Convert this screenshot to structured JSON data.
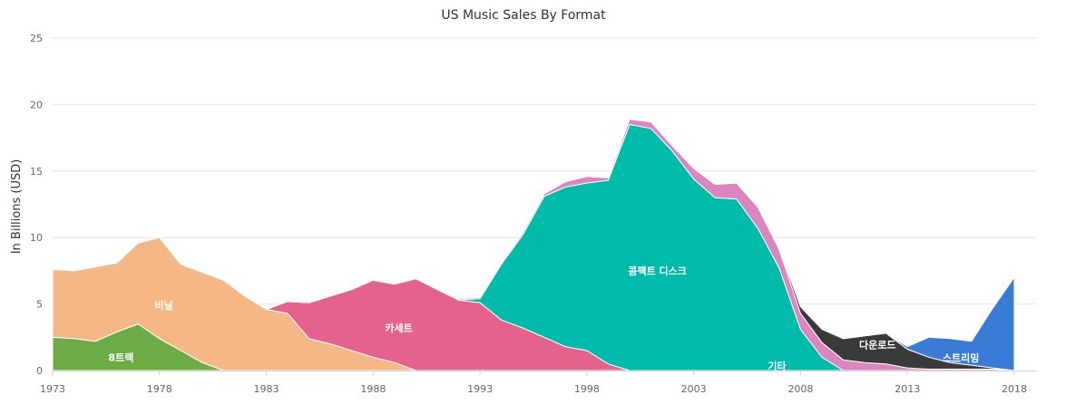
{
  "chart_data": {
    "type": "area",
    "title": "US Music Sales By Format",
    "ylabel": "In Billions (USD)",
    "xlabel": "",
    "xlim": [
      1973,
      2018
    ],
    "ylim": [
      0,
      25
    ],
    "x_ticks": [
      "1973",
      "1978",
      "1983",
      "1988",
      "1993",
      "1998",
      "2003",
      "2008",
      "2013",
      "2018"
    ],
    "y_ticks": [
      "0",
      "5",
      "10",
      "15",
      "20",
      "25"
    ],
    "grid": true,
    "x": [
      1973,
      1974,
      1975,
      1976,
      1977,
      1978,
      1979,
      1980,
      1981,
      1982,
      1983,
      1984,
      1985,
      1986,
      1987,
      1988,
      1989,
      1990,
      1991,
      1992,
      1993,
      1994,
      1995,
      1996,
      1997,
      1998,
      1999,
      2000,
      2001,
      2002,
      2003,
      2004,
      2005,
      2006,
      2007,
      2008,
      2009,
      2010,
      2011,
      2012,
      2013,
      2014,
      2015,
      2016,
      2017,
      2018
    ],
    "series": [
      {
        "name": "8트랙",
        "color": "#6DAB45",
        "values": [
          2.5,
          2.4,
          2.2,
          2.9,
          3.5,
          2.4,
          1.5,
          0.6,
          0,
          0,
          0,
          0,
          0,
          0,
          0,
          0,
          0,
          0,
          0,
          0,
          0,
          0,
          0,
          0,
          0,
          0,
          0,
          0,
          0,
          0,
          0,
          0,
          0,
          0,
          0,
          0,
          0,
          0,
          0,
          0,
          0,
          0,
          0,
          0,
          0,
          0
        ]
      },
      {
        "name": "비닐",
        "color": "#F5B785",
        "values": [
          5.1,
          5.1,
          5.6,
          5.2,
          6.1,
          7.6,
          6.5,
          6.8,
          6.8,
          5.6,
          4.6,
          4.3,
          2.4,
          2.0,
          1.5,
          1.0,
          0.6,
          0,
          0,
          0,
          0,
          0,
          0,
          0,
          0,
          0,
          0,
          0,
          0,
          0,
          0,
          0,
          0,
          0,
          0,
          0,
          0,
          0,
          0,
          0,
          0,
          0,
          0,
          0,
          0,
          0
        ]
      },
      {
        "name": "카세트",
        "color": "#E5628C",
        "values": [
          0,
          0,
          0,
          0,
          0,
          0,
          0,
          0,
          0,
          0,
          0,
          0.9,
          2.7,
          3.6,
          4.6,
          5.8,
          5.9,
          6.9,
          6.1,
          5.3,
          5.1,
          3.8,
          3.2,
          2.5,
          1.8,
          1.5,
          0.5,
          0,
          0,
          0,
          0,
          0,
          0,
          0,
          0,
          0,
          0,
          0,
          0,
          0,
          0,
          0,
          0,
          0,
          0,
          0
        ]
      },
      {
        "name": "콤팩트 디스크",
        "color": "#00BBAA",
        "values": [
          0,
          0,
          0,
          0,
          0,
          0,
          0,
          0,
          0,
          0,
          0,
          0,
          0,
          0,
          0,
          0,
          0,
          0,
          0,
          0,
          0.3,
          4.2,
          7.0,
          10.6,
          12.0,
          12.6,
          13.8,
          18.5,
          18.2,
          16.5,
          14.4,
          13.0,
          12.9,
          10.7,
          7.7,
          3.1,
          1.0,
          0,
          0,
          0,
          0,
          0,
          0,
          0,
          0,
          0
        ]
      },
      {
        "name": "기타",
        "color": "#DB86BE",
        "values": [
          0,
          0,
          0,
          0,
          0,
          0,
          0,
          0,
          0,
          0,
          0,
          0,
          0,
          0,
          0,
          0,
          0,
          0,
          0.1,
          0.1,
          0.1,
          0.1,
          0.2,
          0.2,
          0.4,
          0.5,
          0.2,
          0.4,
          0.5,
          0.4,
          0.8,
          1.0,
          1.2,
          1.6,
          1.4,
          1.2,
          1.1,
          0.8,
          0.6,
          0.5,
          0.2,
          0.1,
          0.1,
          0.1,
          0.1,
          0
        ]
      },
      {
        "name": "다운로드",
        "color": "#3A3A3A",
        "values": [
          0,
          0,
          0,
          0,
          0,
          0,
          0,
          0,
          0,
          0,
          0,
          0,
          0,
          0,
          0,
          0,
          0,
          0,
          0,
          0,
          0,
          0,
          0,
          0,
          0,
          0,
          0,
          0,
          0,
          0,
          0,
          0,
          0,
          0,
          0.1,
          0.5,
          1.0,
          1.6,
          2.0,
          2.3,
          1.4,
          0.9,
          0.5,
          0.3,
          0.1,
          0
        ]
      },
      {
        "name": "스트리밍",
        "color": "#3A7BD5",
        "values": [
          0,
          0,
          0,
          0,
          0,
          0,
          0,
          0,
          0,
          0,
          0,
          0,
          0,
          0,
          0,
          0,
          0,
          0,
          0,
          0,
          0,
          0,
          0,
          0,
          0,
          0,
          0,
          0,
          0,
          0,
          0,
          0,
          0,
          0,
          0,
          0,
          0,
          0,
          0,
          0,
          0.2,
          1.5,
          1.8,
          1.8,
          4.5,
          7.0
        ]
      }
    ],
    "labels": [
      {
        "text": "8트랙",
        "series": "8트랙",
        "x": 1976.2,
        "y": 1.0
      },
      {
        "text": "비닐",
        "series": "비닐",
        "x": 1978.2,
        "y": 4.9
      },
      {
        "text": "카세트",
        "series": "카세트",
        "x": 1989.2,
        "y": 3.2
      },
      {
        "text": "콤팩트 디스크",
        "series": "콤팩트 디스크",
        "x": 2001.3,
        "y": 7.5
      },
      {
        "text": "기타",
        "series": "기타",
        "x": 2006.9,
        "y": 0.35
      },
      {
        "text": "다운로드",
        "series": "다운로드",
        "x": 2011.6,
        "y": 1.95
      },
      {
        "text": "스트리밍",
        "series": "스트리밍",
        "x": 2015.5,
        "y": 0.95
      }
    ]
  }
}
